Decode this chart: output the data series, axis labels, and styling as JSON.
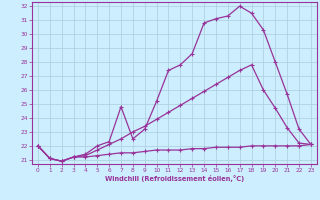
{
  "xlabel": "Windchill (Refroidissement éolien,°C)",
  "background_color": "#cceeff",
  "grid_color": "#aaccdd",
  "line_color": "#993399",
  "xlim": [
    -0.5,
    23.5
  ],
  "ylim": [
    20.7,
    32.3
  ],
  "yticks": [
    21,
    22,
    23,
    24,
    25,
    26,
    27,
    28,
    29,
    30,
    31,
    32
  ],
  "xticks": [
    0,
    1,
    2,
    3,
    4,
    5,
    6,
    7,
    8,
    9,
    10,
    11,
    12,
    13,
    14,
    15,
    16,
    17,
    18,
    19,
    20,
    21,
    22,
    23
  ],
  "line1_x": [
    0,
    1,
    2,
    3,
    4,
    5,
    6,
    7,
    8,
    9,
    10,
    11,
    12,
    13,
    14,
    15,
    16,
    17,
    18,
    19,
    20,
    21,
    22,
    23
  ],
  "line1_y": [
    22.0,
    21.1,
    20.9,
    21.2,
    21.2,
    21.3,
    21.4,
    21.5,
    21.5,
    21.6,
    21.7,
    21.7,
    21.7,
    21.8,
    21.8,
    21.9,
    21.9,
    21.9,
    22.0,
    22.0,
    22.0,
    22.0,
    22.0,
    22.1
  ],
  "line2_x": [
    0,
    1,
    2,
    3,
    4,
    5,
    6,
    7,
    8,
    9,
    10,
    11,
    12,
    13,
    14,
    15,
    16,
    17,
    18,
    19,
    20,
    21,
    22,
    23
  ],
  "line2_y": [
    22.0,
    21.1,
    20.9,
    21.2,
    21.3,
    21.7,
    22.1,
    22.5,
    23.0,
    23.4,
    23.9,
    24.4,
    24.9,
    25.4,
    25.9,
    26.4,
    26.9,
    27.4,
    27.8,
    26.0,
    24.7,
    23.3,
    22.2,
    22.1
  ],
  "line3_x": [
    0,
    1,
    2,
    3,
    4,
    5,
    6,
    7,
    8,
    9,
    10,
    11,
    12,
    13,
    14,
    15,
    16,
    17,
    18,
    19,
    20,
    21,
    22,
    23
  ],
  "line3_y": [
    22.0,
    21.1,
    20.9,
    21.2,
    21.4,
    22.0,
    22.3,
    24.8,
    22.5,
    23.2,
    25.2,
    27.4,
    27.8,
    28.6,
    30.8,
    31.1,
    31.3,
    32.0,
    31.5,
    30.3,
    28.0,
    25.7,
    23.2,
    22.1
  ]
}
